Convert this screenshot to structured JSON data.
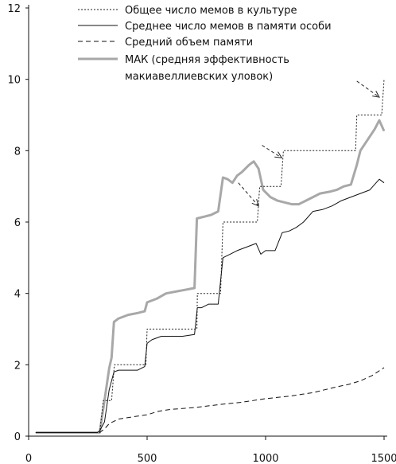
{
  "chart_data": {
    "type": "line",
    "title": "",
    "xlabel": "",
    "ylabel": "",
    "xlim": [
      0,
      1500
    ],
    "ylim": [
      0,
      12
    ],
    "x_ticks": [
      0,
      500,
      1000,
      1500
    ],
    "y_ticks": [
      0,
      2,
      4,
      6,
      8,
      10,
      12
    ],
    "x_tick_labels": [
      "0",
      "500",
      "1000",
      "1500"
    ],
    "y_tick_labels": [
      "0",
      "2",
      "4",
      "6",
      "8",
      "10",
      "12"
    ],
    "grid": false,
    "legend_position": "top",
    "legend": [
      {
        "lines": [
          "Общее число мемов в культуре"
        ],
        "series": "total"
      },
      {
        "lines": [
          "Среднее число мемов в памяти особи"
        ],
        "series": "mean"
      },
      {
        "lines": [
          "Средний объем памяти"
        ],
        "series": "memory"
      },
      {
        "lines": [
          "МАК (средняя эффективность",
          "макиавеллиевских уловок)"
        ],
        "series": "mac"
      }
    ],
    "series": [
      {
        "key": "total",
        "name": "Общее число мемов в культуре",
        "color": "#222222",
        "style": "dotted",
        "points": [
          [
            30,
            0.1
          ],
          [
            300,
            0.1
          ],
          [
            315,
            1.0
          ],
          [
            350,
            1.0
          ],
          [
            362,
            2.0
          ],
          [
            495,
            2.0
          ],
          [
            500,
            3.0
          ],
          [
            710,
            3.0
          ],
          [
            712,
            4.0
          ],
          [
            810,
            4.0
          ],
          [
            820,
            6.0
          ],
          [
            965,
            6.0
          ],
          [
            975,
            7.0
          ],
          [
            1065,
            7.0
          ],
          [
            1075,
            8.0
          ],
          [
            1380,
            8.0
          ],
          [
            1385,
            9.0
          ],
          [
            1490,
            9.0
          ],
          [
            1500,
            10.0
          ]
        ]
      },
      {
        "key": "mean",
        "name": "Среднее число мемов в памяти особи",
        "color": "#111111",
        "style": "solid",
        "points": [
          [
            30,
            0.1
          ],
          [
            290,
            0.1
          ],
          [
            300,
            0.15
          ],
          [
            320,
            0.4
          ],
          [
            340,
            1.3
          ],
          [
            360,
            1.8
          ],
          [
            380,
            1.85
          ],
          [
            420,
            1.85
          ],
          [
            460,
            1.85
          ],
          [
            490,
            1.95
          ],
          [
            500,
            2.6
          ],
          [
            520,
            2.7
          ],
          [
            560,
            2.8
          ],
          [
            600,
            2.8
          ],
          [
            650,
            2.8
          ],
          [
            700,
            2.85
          ],
          [
            712,
            3.6
          ],
          [
            730,
            3.6
          ],
          [
            760,
            3.7
          ],
          [
            800,
            3.7
          ],
          [
            820,
            5.0
          ],
          [
            850,
            5.1
          ],
          [
            880,
            5.2
          ],
          [
            920,
            5.3
          ],
          [
            960,
            5.4
          ],
          [
            980,
            5.1
          ],
          [
            1000,
            5.2
          ],
          [
            1040,
            5.2
          ],
          [
            1070,
            5.7
          ],
          [
            1100,
            5.75
          ],
          [
            1130,
            5.85
          ],
          [
            1160,
            6.0
          ],
          [
            1200,
            6.3
          ],
          [
            1240,
            6.35
          ],
          [
            1280,
            6.45
          ],
          [
            1320,
            6.6
          ],
          [
            1360,
            6.7
          ],
          [
            1400,
            6.8
          ],
          [
            1440,
            6.9
          ],
          [
            1480,
            7.2
          ],
          [
            1500,
            7.1
          ]
        ]
      },
      {
        "key": "memory",
        "name": "Средний объем памяти",
        "color": "#111111",
        "style": "dashed",
        "points": [
          [
            30,
            0.1
          ],
          [
            300,
            0.1
          ],
          [
            320,
            0.2
          ],
          [
            340,
            0.35
          ],
          [
            380,
            0.48
          ],
          [
            450,
            0.55
          ],
          [
            500,
            0.6
          ],
          [
            550,
            0.7
          ],
          [
            600,
            0.75
          ],
          [
            700,
            0.8
          ],
          [
            800,
            0.88
          ],
          [
            900,
            0.95
          ],
          [
            1000,
            1.05
          ],
          [
            1100,
            1.12
          ],
          [
            1200,
            1.22
          ],
          [
            1250,
            1.3
          ],
          [
            1300,
            1.38
          ],
          [
            1350,
            1.45
          ],
          [
            1400,
            1.55
          ],
          [
            1450,
            1.7
          ],
          [
            1500,
            1.92
          ]
        ]
      },
      {
        "key": "mac",
        "name": "МАК (средняя эффективность макиавеллиевских уловок)",
        "color": "#a8a8a8",
        "style": "solid-thick",
        "points": [
          [
            30,
            0.1
          ],
          [
            300,
            0.1
          ],
          [
            320,
            1.0
          ],
          [
            340,
            1.9
          ],
          [
            350,
            2.2
          ],
          [
            360,
            3.2
          ],
          [
            380,
            3.3
          ],
          [
            420,
            3.4
          ],
          [
            460,
            3.45
          ],
          [
            490,
            3.5
          ],
          [
            500,
            3.75
          ],
          [
            540,
            3.85
          ],
          [
            580,
            4.0
          ],
          [
            620,
            4.05
          ],
          [
            660,
            4.1
          ],
          [
            700,
            4.15
          ],
          [
            710,
            6.1
          ],
          [
            740,
            6.15
          ],
          [
            770,
            6.2
          ],
          [
            800,
            6.3
          ],
          [
            820,
            7.25
          ],
          [
            840,
            7.2
          ],
          [
            860,
            7.1
          ],
          [
            880,
            7.3
          ],
          [
            900,
            7.4
          ],
          [
            930,
            7.6
          ],
          [
            950,
            7.7
          ],
          [
            970,
            7.5
          ],
          [
            990,
            6.9
          ],
          [
            1020,
            6.7
          ],
          [
            1050,
            6.6
          ],
          [
            1080,
            6.55
          ],
          [
            1110,
            6.5
          ],
          [
            1140,
            6.5
          ],
          [
            1170,
            6.6
          ],
          [
            1200,
            6.7
          ],
          [
            1230,
            6.8
          ],
          [
            1270,
            6.85
          ],
          [
            1300,
            6.9
          ],
          [
            1330,
            7.0
          ],
          [
            1360,
            7.05
          ],
          [
            1385,
            7.6
          ],
          [
            1400,
            8.0
          ],
          [
            1430,
            8.3
          ],
          [
            1460,
            8.6
          ],
          [
            1480,
            8.85
          ],
          [
            1500,
            8.55
          ]
        ]
      }
    ],
    "annotations": [
      {
        "type": "arrow",
        "style": "dashed",
        "from": [
          1385,
          9.95
        ],
        "to": [
          1480,
          9.5
        ]
      },
      {
        "type": "arrow",
        "style": "dashed",
        "from": [
          985,
          8.15
        ],
        "to": [
          1068,
          7.8
        ]
      },
      {
        "type": "arrow",
        "style": "dashed",
        "from": [
          885,
          7.1
        ],
        "to": [
          970,
          6.45
        ]
      }
    ]
  }
}
